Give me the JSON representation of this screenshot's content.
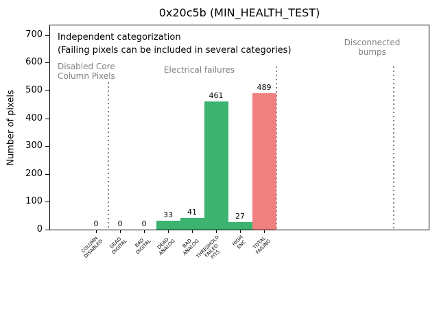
{
  "chart_data": {
    "type": "bar",
    "title": "0x20c5b (MIN_HEALTH_TEST)",
    "ylabel": "Number of pixels",
    "ylim": [
      0,
      734
    ],
    "yticks": [
      0,
      100,
      200,
      300,
      400,
      500,
      600,
      700
    ],
    "grid": false,
    "legend": "none",
    "categories": [
      "COLUMN\nDISABLED",
      "DEAD\nDIGITAL",
      "BAD\nDIGITAL",
      "DEAD\nANALOG",
      "BAD\nANALOG",
      "THRESHOLD\nFAILED\nFITS",
      "HIGH\nENC",
      "TOTAL\nFAILING"
    ],
    "values": [
      0,
      0,
      0,
      33,
      41,
      461,
      27,
      489
    ],
    "value_labels": [
      "0",
      "0",
      "0",
      "33",
      "41",
      "461",
      "27",
      "489"
    ],
    "bar_colors": [
      "#3cb371",
      "#3cb371",
      "#3cb371",
      "#3cb371",
      "#3cb371",
      "#3cb371",
      "#3cb371",
      "#f08080"
    ],
    "annotations": [
      "Independent categorization",
      "(Failing pixels can be included in several categories)"
    ],
    "sections": [
      {
        "label": "Disabled Core\nColumn Pixels",
        "x": -1.6,
        "y": 604,
        "align": "left"
      },
      {
        "label": "Electrical failures",
        "x": 4.3,
        "y": 592,
        "align": "center"
      },
      {
        "label": "Disconnected\nbumps",
        "x": 11.5,
        "y": 690,
        "align": "center"
      }
    ],
    "separators": [
      {
        "x": 0.5,
        "ymax": 530
      },
      {
        "x": 7.5,
        "ymax": 585
      },
      {
        "x": 12.4,
        "ymax": 585
      }
    ],
    "colors": {
      "bar_green": "#3cb371",
      "bar_red": "#f08080",
      "section_text_gray": "#808080"
    }
  }
}
